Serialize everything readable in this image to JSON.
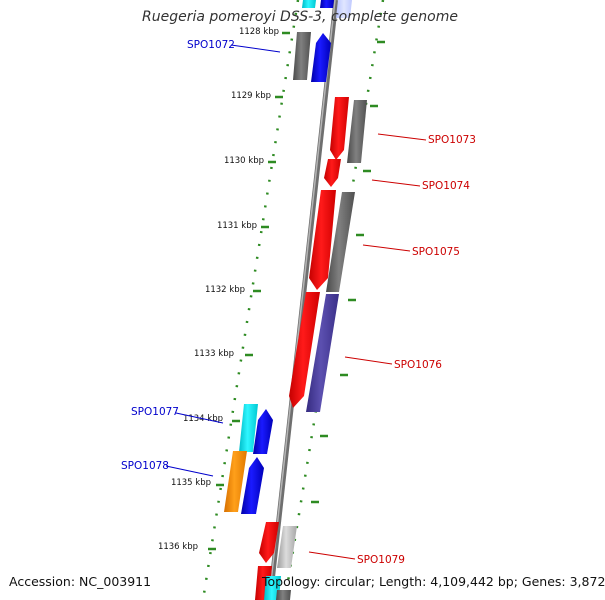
{
  "title": "Ruegeria pomeroyi DSS-3, complete genome",
  "footer": {
    "accession_label": "Accession: ",
    "accession": "NC_003911",
    "topology_label": "Topology: ",
    "topology": "circular",
    "length_label": "; Length: ",
    "length": "4,109,442 bp",
    "genes_label": "; Genes: ",
    "genes": "3,872"
  },
  "scale": [
    "1128 kbp",
    "1129 kbp",
    "1130 kbp",
    "1131 kbp",
    "1132 kbp",
    "1133 kbp",
    "1134 kbp",
    "1135 kbp",
    "1136 kbp"
  ],
  "genes_forward": [
    {
      "label": "SPO1072",
      "color": "#0000cc"
    },
    {
      "label": "SPO1077",
      "color": "#0000cc"
    },
    {
      "label": "SPO1078",
      "color": "#0000cc"
    }
  ],
  "genes_reverse": [
    {
      "label": "SPO1073",
      "color": "#cc0000"
    },
    {
      "label": "SPO1074",
      "color": "#cc0000"
    },
    {
      "label": "SPO1075",
      "color": "#cc0000"
    },
    {
      "label": "SPO1076",
      "color": "#cc0000"
    },
    {
      "label": "SPO1079",
      "color": "#cc0000"
    }
  ],
  "colors": {
    "backbone": "#888888",
    "tick": "#2e8b22",
    "gene_red": "#ff0000",
    "gene_blue": "#0000ee",
    "gene_gray": "#666666",
    "gene_cyan": "#00e5ee",
    "gene_orange": "#ff8c00",
    "gene_slate": "#4a3f9a",
    "gene_lightgray": "#bdbdbd"
  }
}
